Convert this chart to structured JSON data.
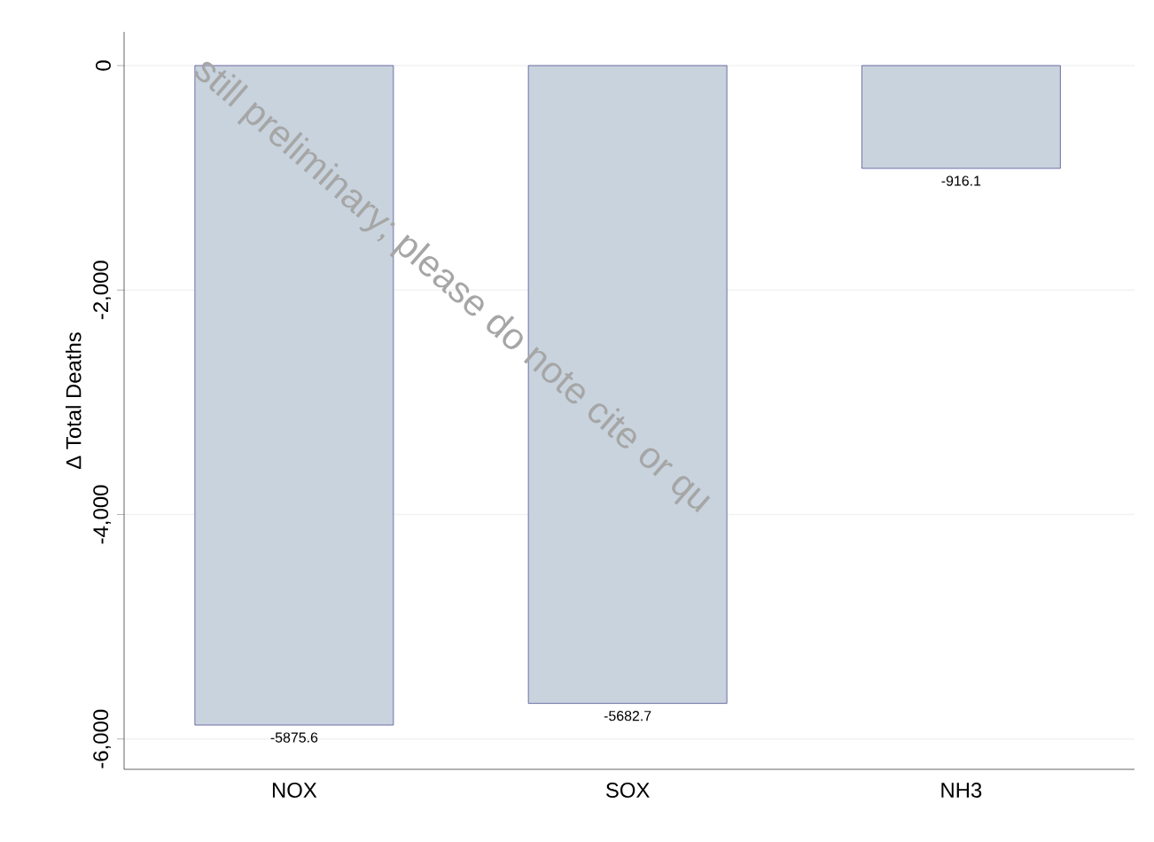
{
  "chart_data": {
    "type": "bar",
    "ylabel": "Δ Total Deaths",
    "categories": [
      "NOX",
      "SOX",
      "NH3"
    ],
    "values": [
      -5875.6,
      -5682.7,
      -916.1
    ],
    "color": "#c8d3dd",
    "ylim": [
      -6270,
      300
    ],
    "yticks": [
      {
        "value": -6000,
        "label": "-6,000"
      },
      {
        "value": -4000,
        "label": "-4,000"
      },
      {
        "value": -2000,
        "label": "-2,000"
      },
      0
    ],
    "grid": "y",
    "data_labels": true,
    "annotations": [
      "still preliminary; please do note cite or qu"
    ]
  }
}
